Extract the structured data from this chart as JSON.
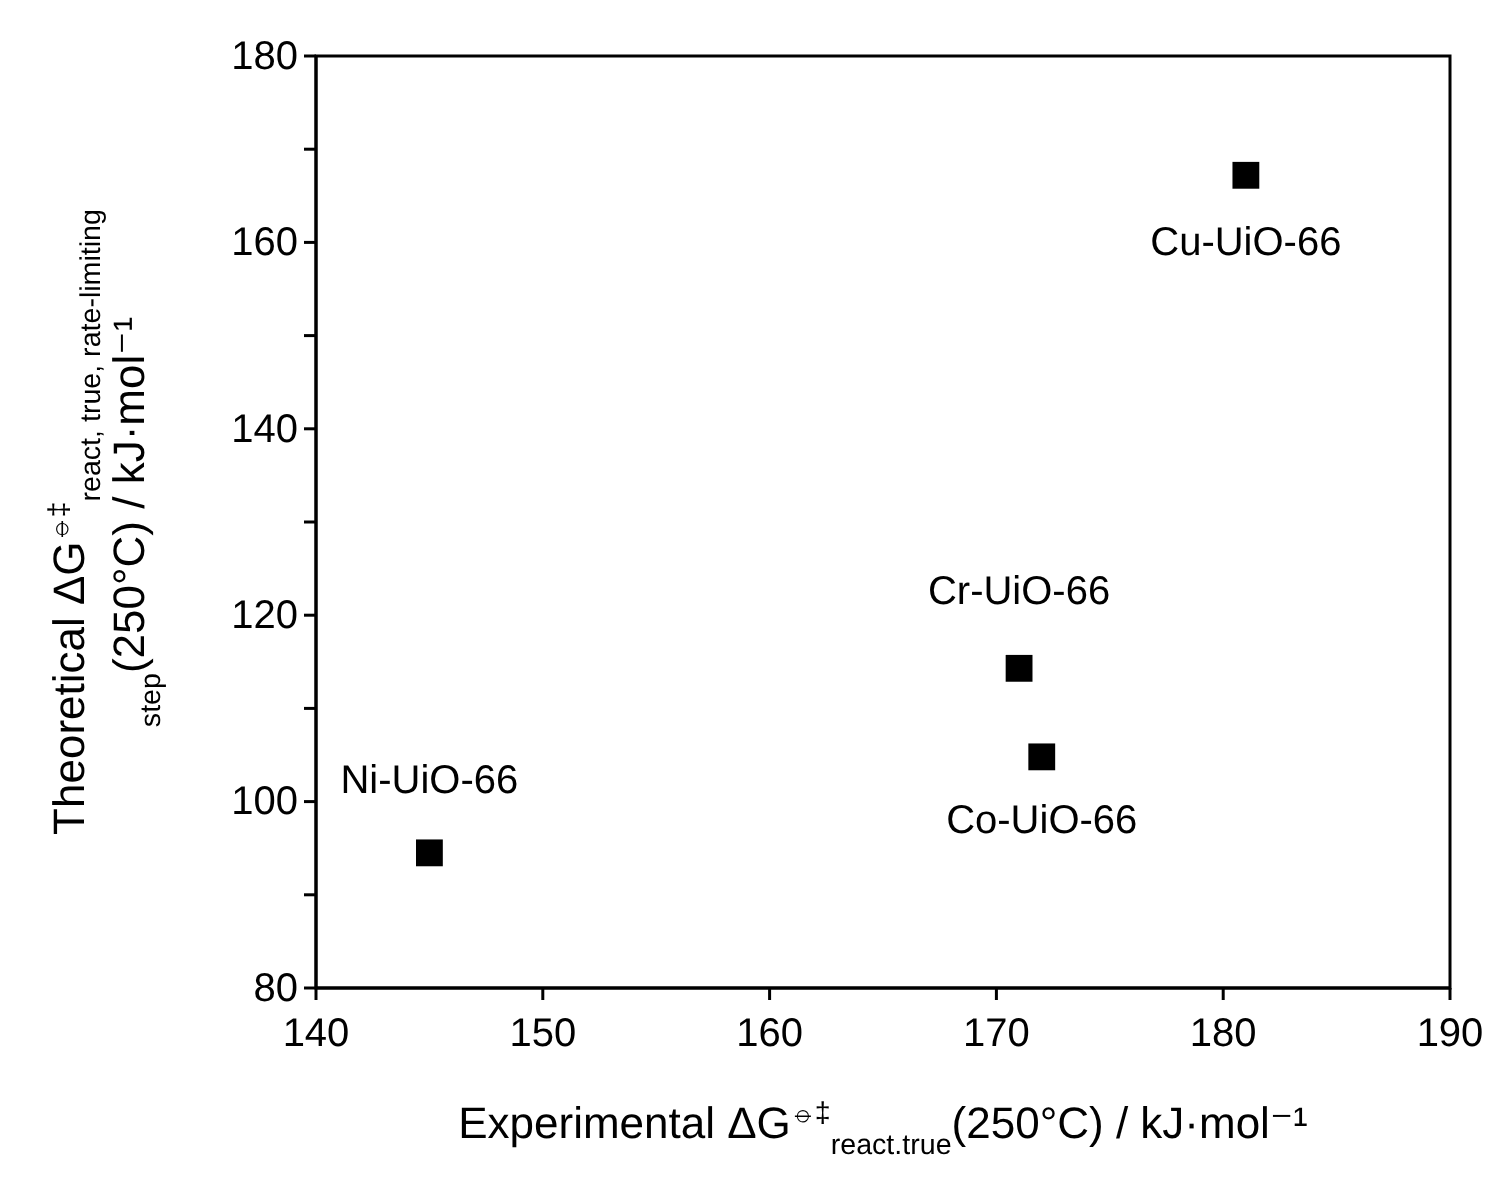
{
  "chart_data": {
    "type": "scatter",
    "xlabel": "Experimental ΔG$^{⦵‡}$$_{react.true}$(250°C) / kJ·mol⁻¹",
    "ylabel": "Theoretical ΔG$^{⦵‡}$$_{react, true, rate-limiting step}$(250°C) / kJ·mol⁻¹",
    "series": [
      {
        "color": "#000000",
        "x": [
          145,
          171,
          172,
          181
        ],
        "values": [
          94.5,
          114.3,
          104.8,
          167.2
        ]
      }
    ],
    "marker": "square",
    "grid": false,
    "xlim": [
      140,
      190
    ],
    "xticks": [
      140,
      150,
      160,
      170,
      180,
      190
    ],
    "ylim": [
      80,
      180
    ],
    "yticks": [
      80,
      {
        "value": 90,
        "label": null
      },
      100,
      {
        "value": 110,
        "label": null
      },
      120,
      {
        "value": 130,
        "label": null
      },
      140,
      {
        "value": 150,
        "label": null
      },
      160,
      {
        "value": 170,
        "label": null
      },
      180
    ],
    "annotations": [
      {
        "text": "Ni-UiO-66",
        "x": 145,
        "y": 94.5
      },
      {
        "text": "Cr-UiO-66",
        "x": 171,
        "y": 114.3
      },
      {
        "text": "Co-UiO-66",
        "x": 172,
        "y": 104.8
      },
      {
        "text": "Cu-UiO-66",
        "x": 181,
        "y": 167.2
      }
    ]
  }
}
